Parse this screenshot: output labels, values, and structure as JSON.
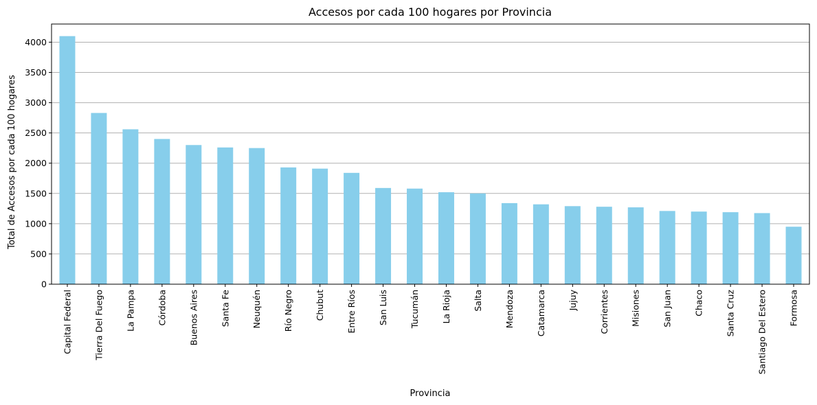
{
  "chart_data": {
    "type": "bar",
    "title": "Accesos por cada 100 hogares por Provincia",
    "xlabel": "Provincia",
    "ylabel": "Total de Accesos por cada 100 hogares",
    "ylim": [
      0,
      4300
    ],
    "yticks": [
      0,
      500,
      1000,
      1500,
      2000,
      2500,
      3000,
      3500,
      4000
    ],
    "grid": "horizontal",
    "bar_color": "#87ceeb",
    "categories": [
      "Capital Federal",
      "Tierra Del Fuego",
      "La Pampa",
      "Córdoba",
      "Buenos Aires",
      "Santa Fe",
      "Neuquén",
      "Río Negro",
      "Chubut",
      "Entre Ríos",
      "San Luis",
      "Tucumán",
      "La Rioja",
      "Salta",
      "Mendoza",
      "Catamarca",
      "Jujuy",
      "Corrientes",
      "Misiones",
      "San Juan",
      "Chaco",
      "Santa Cruz",
      "Santiago Del Estero",
      "Formosa"
    ],
    "values": [
      4100,
      2830,
      2560,
      2400,
      2300,
      2260,
      2250,
      1930,
      1910,
      1840,
      1590,
      1580,
      1520,
      1500,
      1340,
      1320,
      1290,
      1280,
      1270,
      1210,
      1200,
      1190,
      1175,
      950
    ]
  }
}
